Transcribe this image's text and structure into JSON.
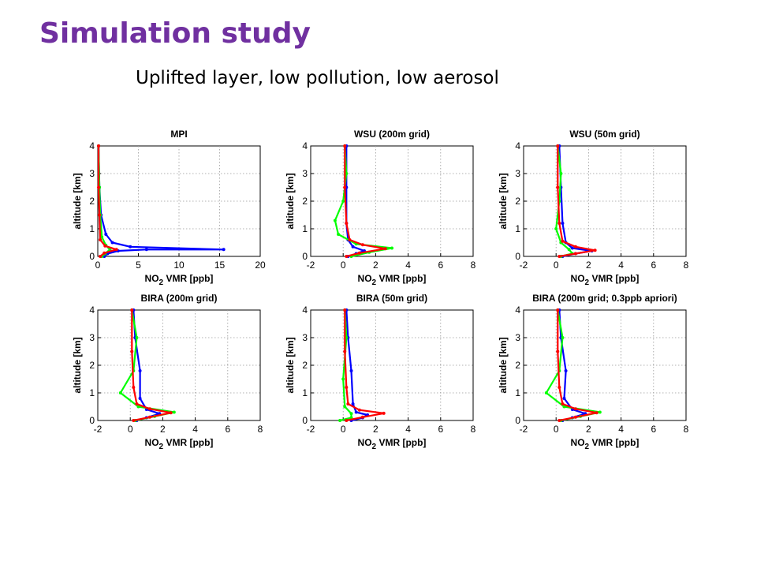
{
  "slide": {
    "title": "Simulation study",
    "subtitle": "Uplifted layer, low pollution, low aerosol"
  },
  "colors": {
    "title": "#7030a0",
    "series1": "#0000ff",
    "series2": "#00ff00",
    "series3": "#ff0000"
  },
  "chart_data": [
    {
      "type": "line",
      "title": "MPI",
      "xlabel": "NO2 VMR [ppb]",
      "ylabel": "altitude [km]",
      "xlim": [
        0,
        20
      ],
      "ylim": [
        0,
        4
      ],
      "xticks": [
        0,
        5,
        10,
        15,
        20
      ],
      "yticks": [
        0,
        1,
        2,
        3,
        4
      ],
      "grid": true,
      "series": [
        {
          "color": "#0000ff",
          "x": [
            0.8,
            1.2,
            2.5,
            6.0,
            15.5,
            4.0,
            1.8,
            1.0,
            0.4,
            0.2,
            0.1
          ],
          "y": [
            0.0,
            0.1,
            0.2,
            0.25,
            0.25,
            0.35,
            0.5,
            0.8,
            1.5,
            2.5,
            4.0
          ]
        },
        {
          "color": "#00ff00",
          "x": [
            0.5,
            0.9,
            1.5,
            1.0,
            0.5,
            0.3,
            0.2,
            0.1
          ],
          "y": [
            0.0,
            0.1,
            0.25,
            0.4,
            0.7,
            1.5,
            2.5,
            4.0
          ]
        },
        {
          "color": "#ff0000",
          "x": [
            0.3,
            0.8,
            2.3,
            0.9,
            0.3,
            0.2,
            0.1,
            0.1
          ],
          "y": [
            0.0,
            0.12,
            0.25,
            0.38,
            0.6,
            1.5,
            2.5,
            4.0
          ]
        }
      ]
    },
    {
      "type": "line",
      "title": "WSU (200m grid)",
      "xlabel": "NO2 VMR [ppb]",
      "ylabel": "altitude [km]",
      "xlim": [
        -2,
        8
      ],
      "ylim": [
        0,
        4
      ],
      "xticks": [
        -2,
        0,
        2,
        4,
        6,
        8
      ],
      "yticks": [
        0,
        1,
        2,
        3,
        4
      ],
      "grid": true,
      "series": [
        {
          "color": "#0000ff",
          "x": [
            0.3,
            0.8,
            1.3,
            0.6,
            0.3,
            0.2,
            0.2,
            0.2
          ],
          "y": [
            0.0,
            0.1,
            0.2,
            0.35,
            0.6,
            1.2,
            2.5,
            4.0
          ]
        },
        {
          "color": "#00ff00",
          "x": [
            0.5,
            1.6,
            3.0,
            0.8,
            -0.3,
            -0.5,
            0.0,
            0.2,
            0.1
          ],
          "y": [
            0.0,
            0.15,
            0.3,
            0.45,
            0.8,
            1.3,
            2.0,
            3.0,
            4.0
          ]
        },
        {
          "color": "#ff0000",
          "x": [
            0.2,
            1.0,
            2.6,
            1.2,
            0.4,
            0.2,
            0.1,
            0.1
          ],
          "y": [
            0.0,
            0.12,
            0.28,
            0.42,
            0.6,
            1.2,
            2.5,
            4.0
          ]
        }
      ]
    },
    {
      "type": "line",
      "title": "WSU (50m grid)",
      "xlabel": "NO2 VMR [ppb]",
      "ylabel": "altitude [km]",
      "xlim": [
        -2,
        8
      ],
      "ylim": [
        0,
        4
      ],
      "xticks": [
        -2,
        0,
        2,
        4,
        6,
        8
      ],
      "yticks": [
        0,
        1,
        2,
        3,
        4
      ],
      "grid": true,
      "series": [
        {
          "color": "#0000ff",
          "x": [
            0.4,
            1.2,
            2.2,
            1.0,
            0.6,
            0.4,
            0.3,
            0.2
          ],
          "y": [
            0.0,
            0.1,
            0.2,
            0.3,
            0.5,
            1.2,
            2.5,
            4.0
          ]
        },
        {
          "color": "#00ff00",
          "x": [
            0.3,
            1.0,
            0.8,
            0.3,
            0.0,
            0.2,
            0.3,
            0.1
          ],
          "y": [
            0.0,
            0.1,
            0.25,
            0.5,
            1.0,
            2.0,
            3.0,
            4.0
          ]
        },
        {
          "color": "#ff0000",
          "x": [
            0.2,
            1.2,
            2.4,
            1.2,
            0.4,
            0.2,
            0.1,
            0.1
          ],
          "y": [
            0.0,
            0.1,
            0.22,
            0.35,
            0.55,
            1.2,
            2.5,
            4.0
          ]
        }
      ]
    },
    {
      "type": "line",
      "title": "BIRA (200m grid)",
      "xlabel": "NO2 VMR [ppb]",
      "ylabel": "altitude [km]",
      "xlim": [
        -2,
        8
      ],
      "ylim": [
        0,
        4
      ],
      "xticks": [
        -2,
        0,
        2,
        4,
        6,
        8
      ],
      "yticks": [
        0,
        1,
        2,
        3,
        4
      ],
      "grid": true,
      "series": [
        {
          "color": "#0000ff",
          "x": [
            0.4,
            1.0,
            1.8,
            1.0,
            0.6,
            0.6,
            0.3,
            0.2
          ],
          "y": [
            0.0,
            0.1,
            0.25,
            0.4,
            0.8,
            1.8,
            3.0,
            4.0
          ]
        },
        {
          "color": "#00ff00",
          "x": [
            0.3,
            1.5,
            2.7,
            0.5,
            -0.6,
            0.2,
            0.4,
            0.1
          ],
          "y": [
            0.0,
            0.15,
            0.3,
            0.5,
            1.0,
            1.8,
            3.0,
            4.0
          ]
        },
        {
          "color": "#ff0000",
          "x": [
            0.2,
            1.2,
            2.5,
            1.2,
            0.4,
            0.2,
            0.1,
            0.1
          ],
          "y": [
            0.0,
            0.12,
            0.28,
            0.42,
            0.6,
            1.2,
            2.5,
            4.0
          ]
        }
      ]
    },
    {
      "type": "line",
      "title": "BIRA (50m grid)",
      "xlabel": "NO2 VMR [ppb]",
      "ylabel": "altitude [km]",
      "xlim": [
        -2,
        8
      ],
      "ylim": [
        0,
        4
      ],
      "xticks": [
        -2,
        0,
        2,
        4,
        6,
        8
      ],
      "yticks": [
        0,
        1,
        2,
        3,
        4
      ],
      "grid": true,
      "series": [
        {
          "color": "#0000ff",
          "x": [
            0.5,
            1.2,
            1.5,
            0.8,
            0.6,
            0.5,
            0.3,
            0.2
          ],
          "y": [
            0.0,
            0.1,
            0.2,
            0.3,
            0.6,
            1.8,
            3.0,
            4.0
          ]
        },
        {
          "color": "#00ff00",
          "x": [
            -0.2,
            0.5,
            0.5,
            0.1,
            0.0,
            0.2,
            0.1
          ],
          "y": [
            0.0,
            0.1,
            0.25,
            0.5,
            1.5,
            3.0,
            4.0
          ]
        },
        {
          "color": "#ff0000",
          "x": [
            0.2,
            1.2,
            2.5,
            1.0,
            0.3,
            0.2,
            0.1,
            0.1
          ],
          "y": [
            0.0,
            0.12,
            0.26,
            0.38,
            0.6,
            1.2,
            2.5,
            4.0
          ]
        }
      ]
    },
    {
      "type": "line",
      "title": "BIRA (200m grid; 0.3ppb apriori)",
      "xlabel": "NO2 VMR [ppb]",
      "ylabel": "altitude [km]",
      "xlim": [
        -2,
        8
      ],
      "ylim": [
        0,
        4
      ],
      "xticks": [
        -2,
        0,
        2,
        4,
        6,
        8
      ],
      "yticks": [
        0,
        1,
        2,
        3,
        4
      ],
      "grid": true,
      "series": [
        {
          "color": "#0000ff",
          "x": [
            0.4,
            1.0,
            1.8,
            1.0,
            0.5,
            0.6,
            0.3,
            0.2
          ],
          "y": [
            0.0,
            0.1,
            0.25,
            0.4,
            0.8,
            1.8,
            3.0,
            4.0
          ]
        },
        {
          "color": "#00ff00",
          "x": [
            0.3,
            1.5,
            2.7,
            0.5,
            -0.6,
            0.2,
            0.4,
            0.1
          ],
          "y": [
            0.0,
            0.15,
            0.3,
            0.5,
            1.0,
            1.8,
            3.0,
            4.0
          ]
        },
        {
          "color": "#ff0000",
          "x": [
            0.2,
            1.2,
            2.5,
            1.2,
            0.4,
            0.2,
            0.1,
            0.1
          ],
          "y": [
            0.0,
            0.12,
            0.28,
            0.42,
            0.6,
            1.2,
            2.5,
            4.0
          ]
        }
      ]
    }
  ]
}
